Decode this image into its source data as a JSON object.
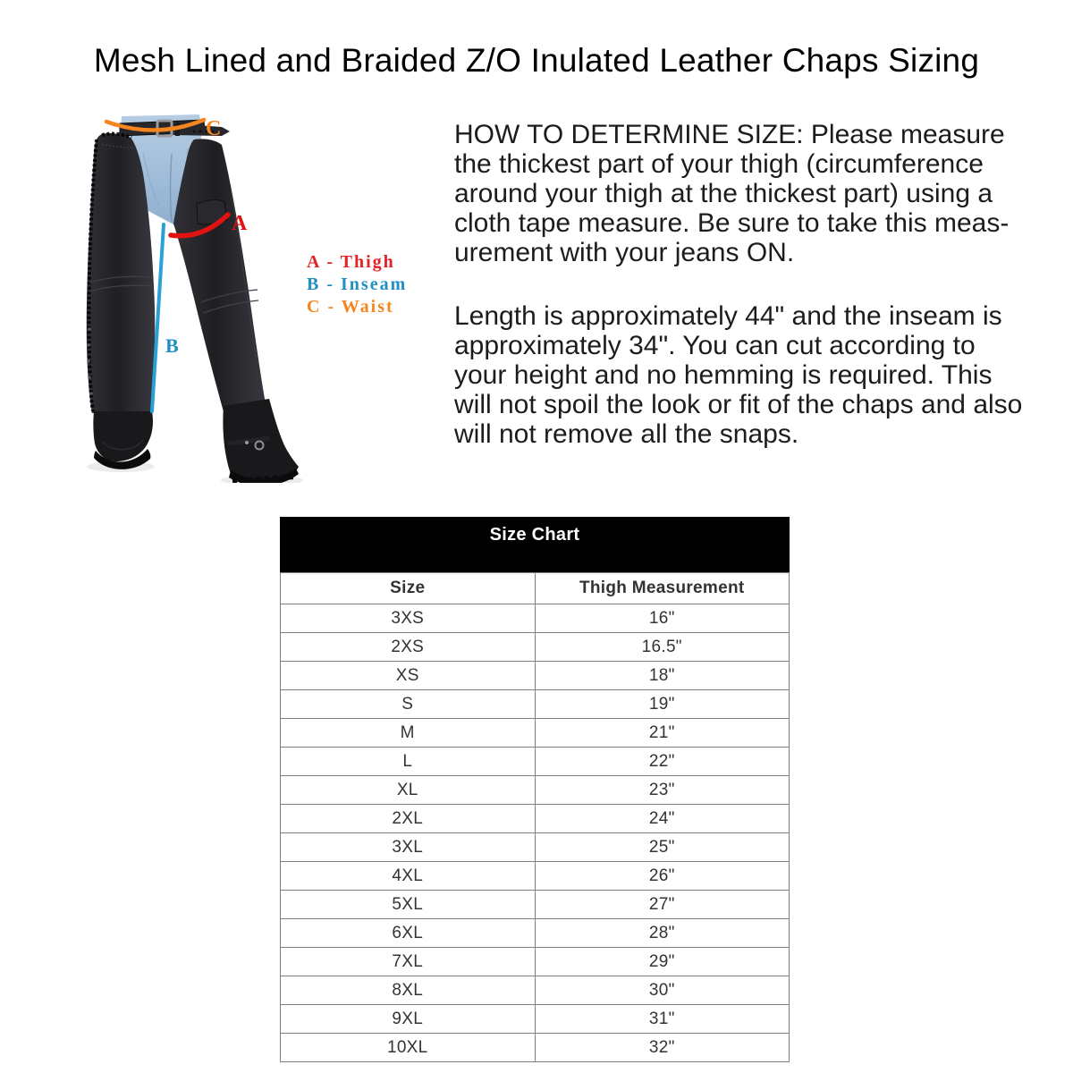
{
  "title": "Mesh Lined and Braided Z/O Inulated Leather Chaps Sizing",
  "diagram": {
    "marker_a": "A",
    "marker_b": "B",
    "marker_c": "C",
    "colors": {
      "thigh_line": "#e01212",
      "inseam_line": "#2aa0d4",
      "waist_line": "#f5861f",
      "legend_thigh": "#e32226",
      "legend_inseam": "#1f8fc4",
      "legend_waist": "#f5861f"
    },
    "legend": [
      {
        "key": "thigh",
        "text": "A - Thigh"
      },
      {
        "key": "inseam",
        "text": "B - Inseam"
      },
      {
        "key": "waist",
        "text": "C - Waist"
      }
    ]
  },
  "instructions": {
    "paragraph1": "HOW TO DETERMINE SIZE: Please measure\nthe thickest part of your thigh (circumference\naround your thigh at the thickest part) using a\ncloth tape measure. Be sure to take this meas-\nurement with your jeans ON.",
    "paragraph2": "Length is approximately 44\" and the inseam is\napproximately 34\". You can cut according to\nyour height and no hemming is required. This\nwill not spoil the look or fit of the chaps and also\nwill not remove all the snaps."
  },
  "size_chart": {
    "title": "Size Chart",
    "columns": [
      "Size",
      "Thigh Measurement"
    ],
    "rows": [
      [
        "3XS",
        "16\""
      ],
      [
        "2XS",
        "16.5\""
      ],
      [
        "XS",
        "18\""
      ],
      [
        "S",
        "19\""
      ],
      [
        "M",
        "21\""
      ],
      [
        "L",
        "22\""
      ],
      [
        "XL",
        "23\""
      ],
      [
        "2XL",
        "24\""
      ],
      [
        "3XL",
        "25\""
      ],
      [
        "4XL",
        "26\""
      ],
      [
        "5XL",
        "27\""
      ],
      [
        "6XL",
        "28\""
      ],
      [
        "7XL",
        "29\""
      ],
      [
        "8XL",
        "30\""
      ],
      [
        "9XL",
        "31\""
      ],
      [
        "10XL",
        "32\""
      ]
    ]
  }
}
